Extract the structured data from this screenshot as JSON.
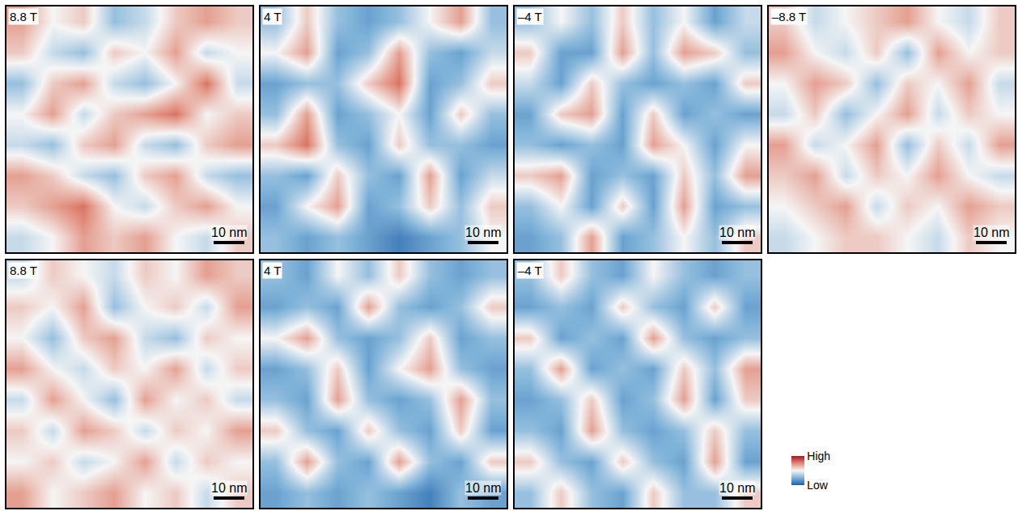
{
  "chart_data": {
    "type": "heatmap",
    "tick_labels": false,
    "colorbar": {
      "range": [
        0,
        1
      ],
      "ticks": [
        {
          "value": 0,
          "label": "Low"
        },
        {
          "value": 1,
          "label": "High"
        }
      ]
    },
    "panels": [
      {
        "title": "8.8 T",
        "scale_bar": "10 nm",
        "z": [
          [
            0.7,
            0.5,
            0.6,
            0.3,
            0.4,
            0.6,
            0.7,
            0.6
          ],
          [
            0.6,
            0.4,
            0.3,
            0.6,
            0.5,
            0.7,
            0.4,
            0.5
          ],
          [
            0.3,
            0.6,
            0.7,
            0.4,
            0.3,
            0.5,
            0.8,
            0.4
          ],
          [
            0.5,
            0.7,
            0.4,
            0.6,
            0.7,
            0.8,
            0.5,
            0.6
          ],
          [
            0.4,
            0.3,
            0.6,
            0.7,
            0.4,
            0.3,
            0.6,
            0.7
          ],
          [
            0.7,
            0.6,
            0.4,
            0.3,
            0.6,
            0.7,
            0.4,
            0.3
          ],
          [
            0.6,
            0.7,
            0.8,
            0.5,
            0.4,
            0.6,
            0.7,
            0.5
          ],
          [
            0.4,
            0.5,
            0.7,
            0.6,
            0.7,
            0.5,
            0.4,
            0.6
          ]
        ]
      },
      {
        "title": "4 T",
        "scale_bar": "10 nm",
        "z": [
          [
            0.3,
            0.6,
            0.3,
            0.2,
            0.3,
            0.5,
            0.7,
            0.3
          ],
          [
            0.5,
            0.7,
            0.2,
            0.3,
            0.7,
            0.3,
            0.2,
            0.4
          ],
          [
            0.2,
            0.3,
            0.3,
            0.6,
            0.8,
            0.2,
            0.3,
            0.6
          ],
          [
            0.3,
            0.7,
            0.2,
            0.3,
            0.5,
            0.2,
            0.6,
            0.3
          ],
          [
            0.6,
            0.8,
            0.3,
            0.2,
            0.6,
            0.3,
            0.3,
            0.2
          ],
          [
            0.3,
            0.2,
            0.6,
            0.3,
            0.2,
            0.7,
            0.2,
            0.4
          ],
          [
            0.2,
            0.5,
            0.7,
            0.2,
            0.3,
            0.6,
            0.3,
            0.6
          ],
          [
            0.3,
            0.2,
            0.3,
            0.2,
            0.1,
            0.2,
            0.3,
            0.5
          ]
        ]
      },
      {
        "title": "–4 T",
        "scale_bar": "10 nm",
        "z": [
          [
            0.3,
            0.5,
            0.3,
            0.6,
            0.3,
            0.5,
            0.2,
            0.4
          ],
          [
            0.6,
            0.2,
            0.2,
            0.7,
            0.3,
            0.7,
            0.6,
            0.3
          ],
          [
            0.4,
            0.2,
            0.6,
            0.3,
            0.2,
            0.3,
            0.2,
            0.6
          ],
          [
            0.2,
            0.6,
            0.7,
            0.2,
            0.6,
            0.2,
            0.3,
            0.2
          ],
          [
            0.3,
            0.2,
            0.3,
            0.2,
            0.7,
            0.5,
            0.2,
            0.5
          ],
          [
            0.6,
            0.7,
            0.2,
            0.3,
            0.2,
            0.6,
            0.3,
            0.7
          ],
          [
            0.3,
            0.5,
            0.2,
            0.6,
            0.2,
            0.7,
            0.2,
            0.3
          ],
          [
            0.2,
            0.3,
            0.7,
            0.2,
            0.3,
            0.5,
            0.3,
            0.6
          ]
        ]
      },
      {
        "title": "–8.8 T",
        "scale_bar": "10 nm",
        "z": [
          [
            0.6,
            0.4,
            0.5,
            0.6,
            0.7,
            0.5,
            0.4,
            0.6
          ],
          [
            0.7,
            0.5,
            0.4,
            0.6,
            0.3,
            0.7,
            0.5,
            0.6
          ],
          [
            0.5,
            0.7,
            0.6,
            0.3,
            0.6,
            0.5,
            0.7,
            0.4
          ],
          [
            0.4,
            0.6,
            0.3,
            0.5,
            0.7,
            0.4,
            0.6,
            0.5
          ],
          [
            0.7,
            0.4,
            0.5,
            0.7,
            0.3,
            0.6,
            0.4,
            0.7
          ],
          [
            0.6,
            0.7,
            0.4,
            0.6,
            0.5,
            0.7,
            0.5,
            0.4
          ],
          [
            0.5,
            0.6,
            0.7,
            0.4,
            0.6,
            0.5,
            0.7,
            0.6
          ],
          [
            0.4,
            0.5,
            0.6,
            0.6,
            0.5,
            0.4,
            0.6,
            0.5
          ]
        ]
      },
      {
        "title": "8.8 T",
        "scale_bar": "10 nm",
        "z": [
          [
            0.4,
            0.6,
            0.5,
            0.4,
            0.6,
            0.5,
            0.7,
            0.6
          ],
          [
            0.6,
            0.5,
            0.7,
            0.3,
            0.5,
            0.6,
            0.4,
            0.7
          ],
          [
            0.5,
            0.3,
            0.6,
            0.7,
            0.4,
            0.3,
            0.6,
            0.5
          ],
          [
            0.7,
            0.5,
            0.4,
            0.6,
            0.5,
            0.7,
            0.4,
            0.6
          ],
          [
            0.4,
            0.7,
            0.5,
            0.3,
            0.7,
            0.5,
            0.6,
            0.4
          ],
          [
            0.6,
            0.4,
            0.7,
            0.6,
            0.4,
            0.6,
            0.5,
            0.7
          ],
          [
            0.5,
            0.6,
            0.4,
            0.5,
            0.7,
            0.4,
            0.6,
            0.5
          ],
          [
            0.7,
            0.5,
            0.6,
            0.7,
            0.5,
            0.6,
            0.4,
            0.6
          ]
        ]
      },
      {
        "title": "4 T",
        "scale_bar": "10 nm",
        "z": [
          [
            0.3,
            0.2,
            0.5,
            0.3,
            0.6,
            0.3,
            0.2,
            0.3
          ],
          [
            0.2,
            0.3,
            0.2,
            0.7,
            0.3,
            0.2,
            0.3,
            0.6
          ],
          [
            0.5,
            0.7,
            0.3,
            0.2,
            0.3,
            0.6,
            0.2,
            0.3
          ],
          [
            0.2,
            0.3,
            0.6,
            0.2,
            0.5,
            0.7,
            0.3,
            0.2
          ],
          [
            0.3,
            0.2,
            0.7,
            0.3,
            0.2,
            0.3,
            0.7,
            0.3
          ],
          [
            0.6,
            0.3,
            0.2,
            0.6,
            0.3,
            0.2,
            0.6,
            0.2
          ],
          [
            0.3,
            0.7,
            0.3,
            0.2,
            0.7,
            0.3,
            0.2,
            0.6
          ],
          [
            0.2,
            0.3,
            0.2,
            0.3,
            0.2,
            0.1,
            0.3,
            0.2
          ]
        ]
      },
      {
        "title": "–4 T",
        "scale_bar": "10 nm",
        "z": [
          [
            0.3,
            0.6,
            0.3,
            0.2,
            0.5,
            0.3,
            0.2,
            0.3
          ],
          [
            0.2,
            0.3,
            0.2,
            0.6,
            0.3,
            0.2,
            0.6,
            0.2
          ],
          [
            0.6,
            0.2,
            0.3,
            0.2,
            0.7,
            0.3,
            0.2,
            0.3
          ],
          [
            0.3,
            0.7,
            0.2,
            0.3,
            0.2,
            0.6,
            0.3,
            0.7
          ],
          [
            0.2,
            0.3,
            0.6,
            0.2,
            0.3,
            0.7,
            0.2,
            0.6
          ],
          [
            0.3,
            0.2,
            0.7,
            0.3,
            0.2,
            0.3,
            0.6,
            0.3
          ],
          [
            0.6,
            0.3,
            0.2,
            0.6,
            0.3,
            0.2,
            0.7,
            0.2
          ],
          [
            0.3,
            0.6,
            0.3,
            0.2,
            0.6,
            0.3,
            0.3,
            0.6
          ]
        ]
      }
    ]
  }
}
